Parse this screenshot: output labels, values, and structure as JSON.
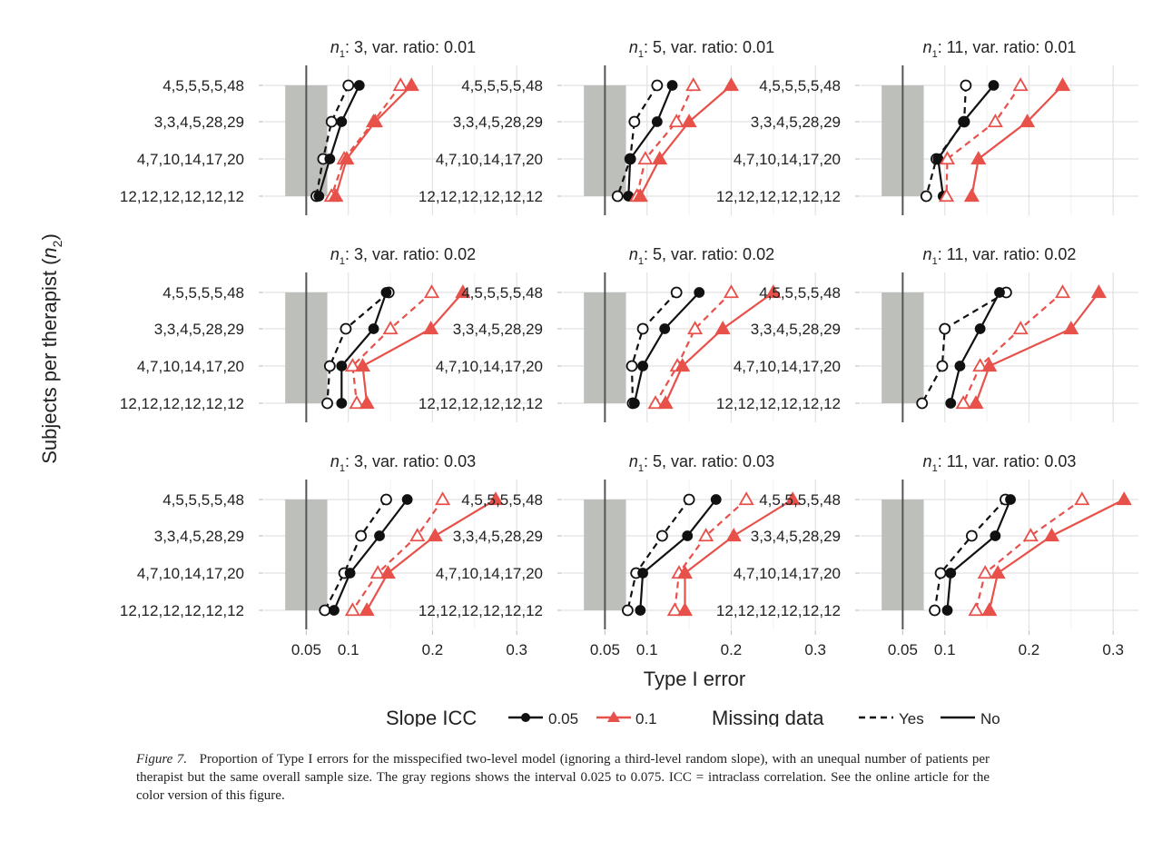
{
  "chart_data": {
    "type": "line",
    "ylabel": "Subjects per therapist (n2)",
    "ylabel_main": "Subjects per therapist (",
    "ylabel_var": "n",
    "ylabel_sub": "2",
    "ylabel_close": ")",
    "xlabel": "Type I error",
    "x_ticks": [
      0.05,
      0.1,
      0.2,
      0.3
    ],
    "x_tick_labels": [
      "0.05",
      "0.1",
      "0.2",
      "0.3"
    ],
    "xlim": [
      0.0,
      0.33
    ],
    "y_categories": [
      "4,5,5,5,5,48",
      "3,3,4,5,28,29",
      "4,7,10,14,17,20",
      "12,12,12,12,12,12"
    ],
    "reference_line": 0.05,
    "gray_region": [
      0.025,
      0.075
    ],
    "colors": {
      "icc_0.05": "#111111",
      "icc_0.1": "#e8504a",
      "region": "#bdbfba",
      "grid": "#e2e2e2",
      "refline": "#555555"
    },
    "legend": {
      "slope_title": "Slope ICC",
      "slope_items": [
        "0.05",
        "0.1"
      ],
      "missing_title": "Missing data",
      "missing_items": [
        "Yes",
        "No"
      ]
    },
    "panels": [
      {
        "n1": "3",
        "ratio": "0.01",
        "title_tail": ": 3, var. ratio: 0.01",
        "series": [
          {
            "icc": "0.05",
            "missing": "Yes",
            "values": [
              0.1,
              0.08,
              0.07,
              0.062
            ]
          },
          {
            "icc": "0.05",
            "missing": "No",
            "values": [
              0.113,
              0.092,
              0.078,
              0.065
            ]
          },
          {
            "icc": "0.1",
            "missing": "Yes",
            "values": [
              0.162,
              0.13,
              0.095,
              0.08
            ]
          },
          {
            "icc": "0.1",
            "missing": "No",
            "values": [
              0.175,
              0.132,
              0.098,
              0.085
            ]
          }
        ]
      },
      {
        "n1": "5",
        "ratio": "0.01",
        "title_tail": ": 5, var. ratio: 0.01",
        "series": [
          {
            "icc": "0.05",
            "missing": "Yes",
            "values": [
              0.112,
              0.085,
              0.08,
              0.065
            ]
          },
          {
            "icc": "0.05",
            "missing": "No",
            "values": [
              0.13,
              0.112,
              0.08,
              0.078
            ]
          },
          {
            "icc": "0.1",
            "missing": "Yes",
            "values": [
              0.155,
              0.135,
              0.098,
              0.088
            ]
          },
          {
            "icc": "0.1",
            "missing": "No",
            "values": [
              0.2,
              0.15,
              0.115,
              0.092
            ]
          }
        ]
      },
      {
        "n1": "11",
        "ratio": "0.01",
        "title_tail": ": 11, var. ratio: 0.01",
        "series": [
          {
            "icc": "0.05",
            "missing": "Yes",
            "values": [
              0.125,
              0.123,
              0.09,
              0.078
            ]
          },
          {
            "icc": "0.05",
            "missing": "No",
            "values": [
              0.158,
              0.122,
              0.092,
              0.098
            ]
          },
          {
            "icc": "0.1",
            "missing": "Yes",
            "values": [
              0.19,
              0.16,
              0.103,
              0.102
            ]
          },
          {
            "icc": "0.1",
            "missing": "No",
            "values": [
              0.24,
              0.198,
              0.14,
              0.132
            ]
          }
        ]
      },
      {
        "n1": "3",
        "ratio": "0.02",
        "title_tail": ": 3, var. ratio: 0.02",
        "series": [
          {
            "icc": "0.05",
            "missing": "Yes",
            "values": [
              0.148,
              0.097,
              0.078,
              0.075
            ]
          },
          {
            "icc": "0.05",
            "missing": "No",
            "values": [
              0.145,
              0.13,
              0.092,
              0.092
            ]
          },
          {
            "icc": "0.1",
            "missing": "Yes",
            "values": [
              0.199,
              0.15,
              0.105,
              0.11
            ]
          },
          {
            "icc": "0.1",
            "missing": "No",
            "values": [
              0.236,
              0.198,
              0.117,
              0.122
            ]
          }
        ]
      },
      {
        "n1": "5",
        "ratio": "0.02",
        "title_tail": ": 5, var. ratio: 0.02",
        "series": [
          {
            "icc": "0.05",
            "missing": "Yes",
            "values": [
              0.135,
              0.095,
              0.082,
              0.083
            ]
          },
          {
            "icc": "0.05",
            "missing": "No",
            "values": [
              0.162,
              0.121,
              0.095,
              0.085
            ]
          },
          {
            "icc": "0.1",
            "missing": "Yes",
            "values": [
              0.2,
              0.157,
              0.136,
              0.11
            ]
          },
          {
            "icc": "0.1",
            "missing": "No",
            "values": [
              0.25,
              0.19,
              0.142,
              0.122
            ]
          }
        ]
      },
      {
        "n1": "11",
        "ratio": "0.02",
        "title_tail": ": 11, var. ratio: 0.02",
        "series": [
          {
            "icc": "0.05",
            "missing": "Yes",
            "values": [
              0.173,
              0.1,
              0.097,
              0.073
            ]
          },
          {
            "icc": "0.05",
            "missing": "No",
            "values": [
              0.165,
              0.142,
              0.118,
              0.107
            ]
          },
          {
            "icc": "0.1",
            "missing": "Yes",
            "values": [
              0.24,
              0.19,
              0.142,
              0.122
            ]
          },
          {
            "icc": "0.1",
            "missing": "No",
            "values": [
              0.283,
              0.25,
              0.153,
              0.137
            ]
          }
        ]
      },
      {
        "n1": "3",
        "ratio": "0.03",
        "title_tail": ": 3, var. ratio: 0.03",
        "series": [
          {
            "icc": "0.05",
            "missing": "Yes",
            "values": [
              0.145,
              0.115,
              0.095,
              0.072
            ]
          },
          {
            "icc": "0.05",
            "missing": "No",
            "values": [
              0.17,
              0.137,
              0.102,
              0.083
            ]
          },
          {
            "icc": "0.1",
            "missing": "Yes",
            "values": [
              0.212,
              0.182,
              0.135,
              0.105
            ]
          },
          {
            "icc": "0.1",
            "missing": "No",
            "values": [
              0.275,
              0.203,
              0.147,
              0.122
            ]
          }
        ]
      },
      {
        "n1": "5",
        "ratio": "0.03",
        "title_tail": ": 5, var. ratio: 0.03",
        "series": [
          {
            "icc": "0.05",
            "missing": "Yes",
            "values": [
              0.15,
              0.118,
              0.087,
              0.077
            ]
          },
          {
            "icc": "0.05",
            "missing": "No",
            "values": [
              0.182,
              0.148,
              0.095,
              0.092
            ]
          },
          {
            "icc": "0.1",
            "missing": "Yes",
            "values": [
              0.218,
              0.17,
              0.138,
              0.133
            ]
          },
          {
            "icc": "0.1",
            "missing": "No",
            "values": [
              0.273,
              0.203,
              0.145,
              0.145
            ]
          }
        ]
      },
      {
        "n1": "11",
        "ratio": "0.03",
        "title_tail": ": 11, var. ratio: 0.03",
        "series": [
          {
            "icc": "0.05",
            "missing": "Yes",
            "values": [
              0.172,
              0.132,
              0.095,
              0.088
            ]
          },
          {
            "icc": "0.05",
            "missing": "No",
            "values": [
              0.178,
              0.16,
              0.107,
              0.103
            ]
          },
          {
            "icc": "0.1",
            "missing": "Yes",
            "values": [
              0.263,
              0.202,
              0.148,
              0.137
            ]
          },
          {
            "icc": "0.1",
            "missing": "No",
            "values": [
              0.313,
              0.227,
              0.163,
              0.153
            ]
          }
        ]
      }
    ]
  },
  "caption": {
    "label": "Figure 7.",
    "text": "Proportion of Type I errors for the misspecified two-level model (ignoring a third-level random slope), with an unequal number of patients per therapist but the same overall sample size. The gray regions shows the interval 0.025 to 0.075. ICC = intraclass correlation. See the online article for the color version of this figure."
  }
}
